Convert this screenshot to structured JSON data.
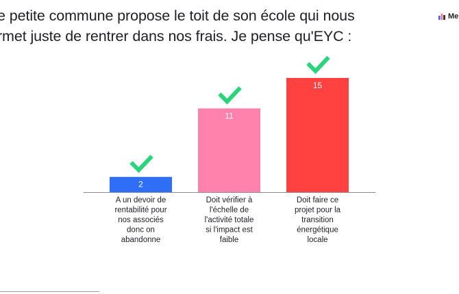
{
  "header": {
    "title_line1": "e petite commune propose le toit de son école qui nous",
    "title_line2": "rmet juste de rentrer dans nos frais. Je pense qu'EYC :",
    "brand": "Men",
    "brand_icon": "mentimeter-logo-icon"
  },
  "chart_data": {
    "type": "bar",
    "categories": [
      [
        "A un devoir de",
        "rentabilité pour",
        "nos associés",
        "donc on",
        "abandonne"
      ],
      [
        "Doit vérifier à",
        "l'échelle de",
        "l'activité totale",
        "si l'impact est",
        "faible"
      ],
      [
        "Doit faire ce",
        "projet pour la",
        "transition",
        "énergétique",
        "locale"
      ]
    ],
    "values": [
      2,
      11,
      15
    ],
    "colors": [
      "#2f6ef6",
      "#ff82ad",
      "#ff4140"
    ],
    "marker": "checkmark-icon",
    "marker_color": "#2bd47a",
    "axis_color": "#8a8a94",
    "ylim": [
      0,
      15
    ],
    "title": "",
    "xlabel": "",
    "ylabel": ""
  }
}
